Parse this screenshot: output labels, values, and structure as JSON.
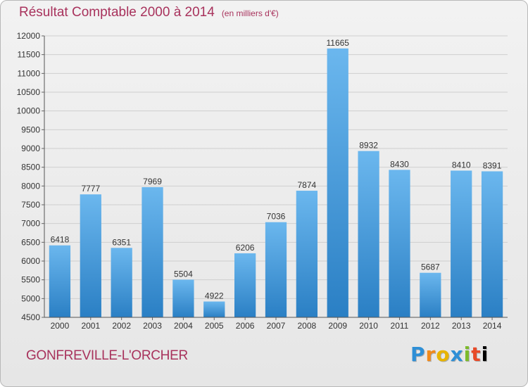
{
  "header": {
    "title": "Résultat Comptable 2000 à 2014",
    "subtitle": "(en milliers d'€)"
  },
  "footer": {
    "commune": "GONFREVILLE-L'ORCHER",
    "brand_letters": [
      "P",
      "r",
      "o",
      "x",
      "i",
      "t",
      "i"
    ]
  },
  "colors": {
    "bar_light": "#6bb7ee",
    "bar_dark": "#2a7fc4",
    "title": "#a8325c",
    "grid": "#cfcfcf"
  },
  "chart_data": {
    "type": "bar",
    "categories": [
      "2000",
      "2001",
      "2002",
      "2003",
      "2004",
      "2005",
      "2006",
      "2007",
      "2008",
      "2009",
      "2010",
      "2011",
      "2012",
      "2013",
      "2014"
    ],
    "values": [
      6418,
      7777,
      6351,
      7969,
      5504,
      4922,
      6206,
      7036,
      7874,
      11665,
      8932,
      8430,
      5687,
      8410,
      8391
    ],
    "title": "Résultat Comptable 2000 à 2014",
    "xlabel": "",
    "ylabel": "",
    "ylim": [
      4500,
      12000
    ],
    "yticks": [
      4500,
      5000,
      5500,
      6000,
      6500,
      7000,
      7500,
      8000,
      8500,
      9000,
      9500,
      10000,
      10500,
      11000,
      11500,
      12000
    ],
    "grid": true,
    "data_labels": true
  }
}
